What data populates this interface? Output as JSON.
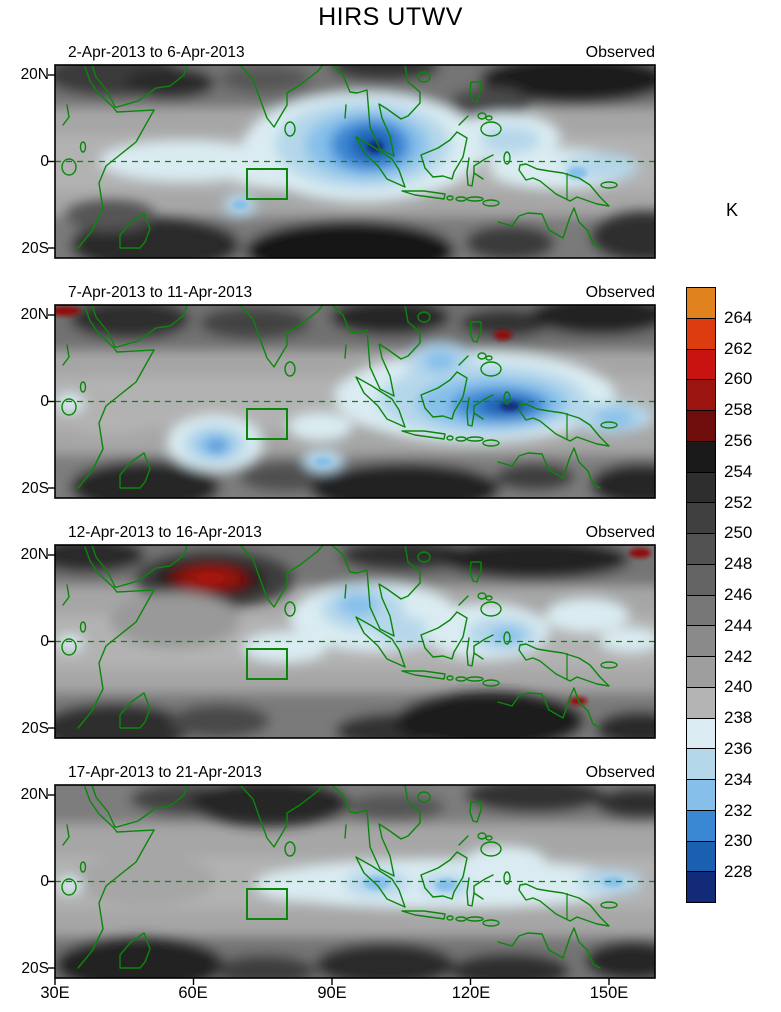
{
  "title": "HIRS UTWV",
  "panels": [
    {
      "date_range": "2-Apr-2013 to 6-Apr-2013",
      "source": "Observed"
    },
    {
      "date_range": "7-Apr-2013 to 11-Apr-2013",
      "source": "Observed"
    },
    {
      "date_range": "12-Apr-2013 to 16-Apr-2013",
      "source": "Observed"
    },
    {
      "date_range": "17-Apr-2013 to 21-Apr-2013",
      "source": "Observed"
    }
  ],
  "axes": {
    "y_ticks": [
      "20N",
      "0",
      "20S"
    ],
    "x_ticks": [
      "30E",
      "60E",
      "90E",
      "120E",
      "150E"
    ]
  },
  "colorbar": {
    "unit": "K",
    "tick_labels": [
      264,
      262,
      260,
      258,
      256,
      254,
      252,
      250,
      248,
      246,
      244,
      242,
      240,
      238,
      236,
      234,
      232,
      230,
      228
    ],
    "colors": [
      "#e0831f",
      "#dd3b10",
      "#c81310",
      "#9c1410",
      "#6f0c0c",
      "#1a1a1a",
      "#2e2e2e",
      "#404040",
      "#525252",
      "#646464",
      "#777777",
      "#8a8a8a",
      "#9e9e9e",
      "#b4b4b4",
      "#daecf2",
      "#b5d7ea",
      "#86c0ea",
      "#3a87d4",
      "#1a5fb0",
      "#122a78"
    ]
  },
  "map": {
    "coastline_color": "#0a870a",
    "region_box": "green rectangle approx 72E-80E, 2S-9S (all panels)",
    "equator_line": "green dashed line at latitude 0"
  },
  "chart_data": {
    "type": "heatmap",
    "title": "HIRS UTWV",
    "unit": "K",
    "x_axis": {
      "ticks": [
        "30E",
        "60E",
        "90E",
        "120E",
        "150E"
      ],
      "range": "30E to 160E"
    },
    "y_axis": {
      "ticks": [
        "20N",
        "0",
        "20S"
      ],
      "range": "approx 22N to 22S"
    },
    "levels_k": [
      228,
      230,
      232,
      234,
      236,
      238,
      240,
      242,
      244,
      246,
      248,
      250,
      252,
      254,
      256,
      258,
      260,
      262,
      264
    ],
    "palette": "blues below 238 K (cold/moist), grays 238-256 K, dark reds to orange above 256 K (warm/dry)",
    "legend_position": "right",
    "grid": false,
    "panels": [
      {
        "date_range": "2-Apr-2013 to 6-Apr-2013",
        "source": "Observed",
        "features": [
          {
            "feature": "deep moist minimum (dark blue core)",
            "center": "95E-100E, 0-8N",
            "approx_min_k": 228
          },
          {
            "feature": "light-blue moist band along equator",
            "extent": "40E-125E",
            "approx_k": 236
          },
          {
            "feature": "moist patch",
            "center": "130E-160E, 0-8S",
            "approx_k": 234
          },
          {
            "feature": "small moist spot",
            "center": "70E, 9S",
            "approx_k": 234
          },
          {
            "feature": "dry dark subtropical bands",
            "center": "darkest 85E-105E 15S-20S and 120E-160E 15N-20N",
            "approx_max_k": 256
          }
        ]
      },
      {
        "date_range": "7-Apr-2013 to 11-Apr-2013",
        "source": "Observed",
        "features": [
          {
            "feature": "broad moist region over Maritime Continent",
            "center": "100E-140E, 8N-8S",
            "approx_min_k": 230
          },
          {
            "feature": "moist blob",
            "center": "65E, 10S",
            "approx_min_k": 231
          },
          {
            "feature": "small warm red specks",
            "center": "30E-38E 20N and 126E 13N",
            "approx_k": 259
          },
          {
            "feature": "dry dark subtropical bands both hemispheres",
            "approx_max_k": 256
          }
        ]
      },
      {
        "date_range": "12-Apr-2013 to 16-Apr-2013",
        "source": "Observed",
        "features": [
          {
            "feature": "strong warm/dry anomaly (dark red blob)",
            "center": "55E-72E, 12N-18N",
            "approx_max_k": 261
          },
          {
            "feature": "warm specks",
            "center": "152E 19N and 143E 14S",
            "approx_k": 259
          },
          {
            "feature": "moist patches",
            "center": "95E-105E 4N-10N and 120E-132E near equator",
            "approx_min_k": 233
          },
          {
            "feature": "very dark dry region",
            "center": "115E-140E, 12S-20S",
            "approx_max_k": 256
          }
        ]
      },
      {
        "date_range": "17-Apr-2013 to 21-Apr-2013",
        "source": "Observed",
        "features": [
          {
            "feature": "light moist equatorial band",
            "extent": "85E-160E, 6N-6S",
            "approx_k": 236
          },
          {
            "feature": "small moist cores",
            "center": "100E 0, 114E 0, 150E 2S",
            "approx_min_k": 233
          },
          {
            "feature": "dry dark region",
            "center": "60E-80E, 12N-20N",
            "approx_max_k": 255
          },
          {
            "feature": "dry dark band along 15S-20S",
            "approx_max_k": 255
          }
        ]
      }
    ],
    "overlays": {
      "coastlines": "green (Africa, Arabia, India, Indochina, Maritime Continent, New Guinea, N Australia)",
      "equator": "green dashed line at 0",
      "index_box": "green rectangle approx 72E-80E, 2S-9S in every panel"
    }
  }
}
